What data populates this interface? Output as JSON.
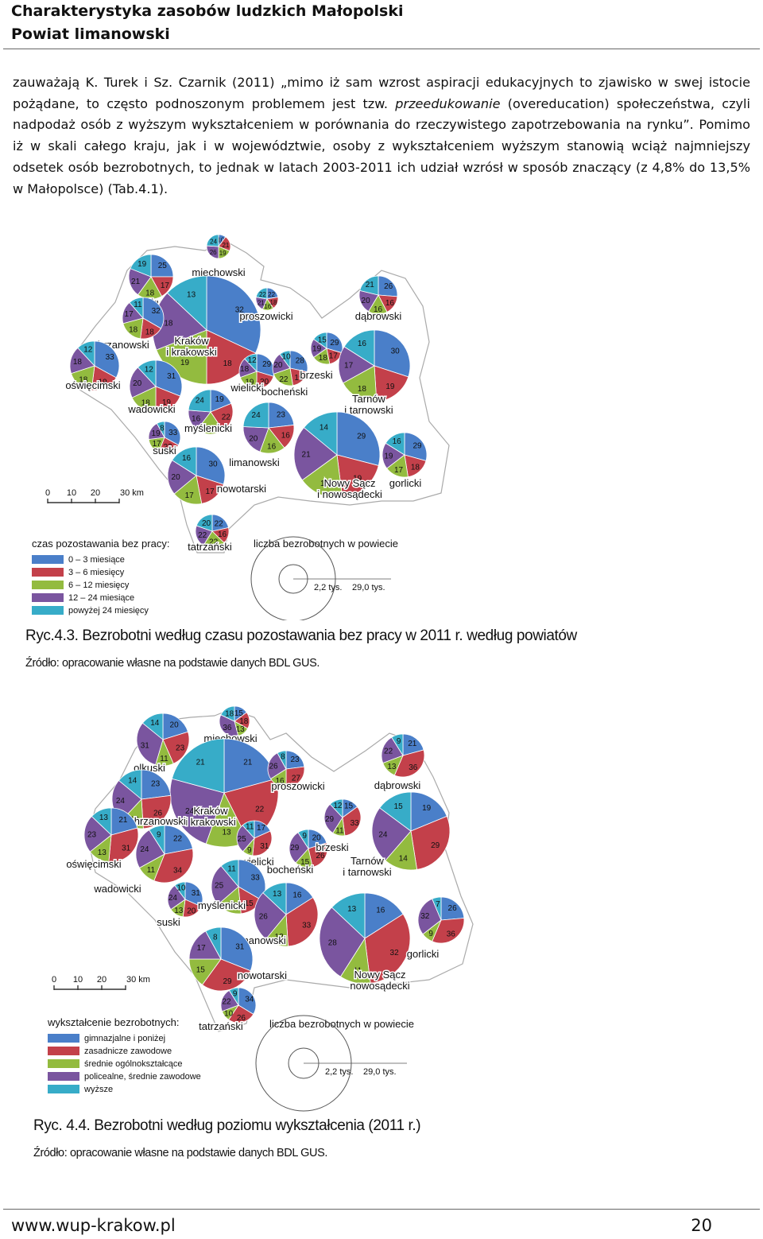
{
  "header": {
    "line1": "Charakterystyka zasobów ludzkich Małopolski",
    "line2": "Powiat limanowski"
  },
  "body": {
    "part1": "zauważają K. Turek i Sz. Czarnik (2011) „mimo iż sam wzrost aspiracji edukacyjnych to zjawisko w swej istocie pożądane, to często podnoszonym problemem jest tzw. ",
    "italic": "przeedukowanie",
    "part2": " (overeducation) społeczeństwa, czyli nadpodaż osób z wyższym wykształceniem w porównania do rzeczywistego zapotrzebowania na rynku”. Pomimo iż w skali całego kraju, jak i w województwie, osoby z wykształceniem wyższym stanowią wciąż najmniejszy odsetek osób bezrobotnych, to jednak w latach 2003-2011 ich udział wzrósł w sposób znaczący (z 4,8% do 13,5% w Małopolsce) (Tab.4.1)."
  },
  "figure1": {
    "caption": "Ryc.4.3. Bezrobotni według czasu pozostawania bez pracy w 2011 r. według powiatów",
    "source": "Źródło: opracowanie własne na podstawie danych BDL GUS.",
    "scale": {
      "ticks": [
        "0",
        "10",
        "20",
        "30 km"
      ]
    },
    "legend_title": "czas pozostawania bez pracy:",
    "legend": [
      {
        "label": "0 – 3 miesiące",
        "color": "#4a7fc9"
      },
      {
        "label": "3 – 6 miesięcy",
        "color": "#c3404a"
      },
      {
        "label": "6 – 12 miesięcy",
        "color": "#93bb3f"
      },
      {
        "label": "12 – 24 miesiące",
        "color": "#7a559f"
      },
      {
        "label": "powyżej 24 miesięcy",
        "color": "#37acc8"
      }
    ],
    "size_title": "liczba bezrobotnych w powiecie",
    "size_small": "2,2 tys.",
    "size_large": "29,0 tys.",
    "districts": [
      {
        "name": "miechowski",
        "values": [
          10,
          21,
          19,
          26,
          24
        ]
      },
      {
        "name": "olkuski",
        "values": [
          25,
          17,
          18,
          21,
          19
        ]
      },
      {
        "name": "Kraków i krakowski",
        "values": [
          32,
          18,
          19,
          18,
          13
        ]
      },
      {
        "name": "proszowicki",
        "values": [
          22,
          18,
          16,
          21,
          22
        ]
      },
      {
        "name": "dąbrowski",
        "values": [
          26,
          16,
          16,
          20,
          21
        ]
      },
      {
        "name": "chrzanowski",
        "values": [
          32,
          18,
          18,
          17,
          11
        ]
      },
      {
        "name": "oświęcimski",
        "values": [
          33,
          19,
          18,
          18,
          12
        ]
      },
      {
        "name": "wadowicki",
        "values": [
          31,
          19,
          18,
          20,
          12
        ]
      },
      {
        "name": "wielicki",
        "values": [
          29,
          20,
          19,
          18,
          12
        ]
      },
      {
        "name": "bocheński",
        "values": [
          28,
          19,
          22,
          20,
          10
        ]
      },
      {
        "name": "brzeski",
        "values": [
          29,
          17,
          18,
          19,
          15
        ]
      },
      {
        "name": "Tarnów i tarnowski",
        "values": [
          30,
          19,
          18,
          17,
          16
        ]
      },
      {
        "name": "suski",
        "values": [
          33,
          23,
          17,
          19,
          8
        ]
      },
      {
        "name": "myślenicki",
        "values": [
          19,
          22,
          20,
          16,
          24
        ]
      },
      {
        "name": "limanowski",
        "values": [
          23,
          16,
          16,
          20,
          24
        ]
      },
      {
        "name": "Nowy Sącz i nowosądecki",
        "values": [
          29,
          19,
          17,
          21,
          14
        ]
      },
      {
        "name": "gorlicki",
        "values": [
          29,
          18,
          17,
          19,
          16
        ]
      },
      {
        "name": "nowotarski",
        "values": [
          30,
          17,
          17,
          20,
          16
        ]
      },
      {
        "name": "tatrzański",
        "values": [
          22,
          16,
          22,
          22,
          20
        ]
      }
    ]
  },
  "figure2": {
    "caption": "Ryc. 4.4. Bezrobotni według poziomu wykształcenia (2011 r.)",
    "source": "Źródło: opracowanie własne na podstawie danych BDL GUS.",
    "scale": {
      "ticks": [
        "0",
        "10",
        "20",
        "30 km"
      ]
    },
    "legend_title": "wykształcenie bezrobotnych:",
    "legend": [
      {
        "label": "gimnazjalne i poniżej",
        "color": "#4a7fc9"
      },
      {
        "label": "zasadnicze zawodowe",
        "color": "#c3404a"
      },
      {
        "label": "średnie ogólnokształcące",
        "color": "#93bb3f"
      },
      {
        "label": "policealne, średnie zawodowe",
        "color": "#7a559f"
      },
      {
        "label": "wyższe",
        "color": "#37acc8"
      }
    ],
    "size_title": "liczba bezrobotnych w powiecie",
    "size_small": "2,2 tys.",
    "size_large": "29,0 tys.",
    "districts": [
      {
        "name": "miechowski",
        "values": [
          15,
          18,
          13,
          36,
          18
        ]
      },
      {
        "name": "olkuski",
        "values": [
          20,
          23,
          11,
          31,
          14
        ]
      },
      {
        "name": "Kraków i krakowski",
        "values": [
          21,
          22,
          13,
          24,
          21
        ]
      },
      {
        "name": "proszowicki",
        "values": [
          23,
          27,
          16,
          26,
          8
        ]
      },
      {
        "name": "dąbrowski",
        "values": [
          21,
          36,
          13,
          22,
          9
        ]
      },
      {
        "name": "chrzanowski",
        "values": [
          23,
          26,
          13,
          24,
          14
        ]
      },
      {
        "name": "oświęcimski",
        "values": [
          21,
          31,
          13,
          23,
          13
        ]
      },
      {
        "name": "wadowicki",
        "values": [
          22,
          34,
          11,
          24,
          9
        ]
      },
      {
        "name": "wielicki",
        "values": [
          17,
          31,
          9,
          25,
          11
        ]
      },
      {
        "name": "bocheński",
        "values": [
          20,
          26,
          15,
          29,
          9
        ]
      },
      {
        "name": "brzeski",
        "values": [
          15,
          33,
          11,
          29,
          12
        ]
      },
      {
        "name": "Tarnów i tarnowski",
        "values": [
          19,
          29,
          14,
          24,
          15
        ]
      },
      {
        "name": "suski",
        "values": [
          31,
          20,
          13,
          24,
          10
        ]
      },
      {
        "name": "myślenicki",
        "values": [
          33,
          15,
          15,
          25,
          11
        ]
      },
      {
        "name": "limanowski",
        "values": [
          16,
          33,
          12,
          26,
          13
        ]
      },
      {
        "name": "Nowy Sącz i nowosądecki",
        "values": [
          16,
          32,
          11,
          28,
          13
        ]
      },
      {
        "name": "gorlicki",
        "values": [
          26,
          36,
          9,
          32,
          7
        ]
      },
      {
        "name": "nowotarski",
        "values": [
          31,
          29,
          15,
          17,
          8
        ]
      },
      {
        "name": "tatrzański",
        "values": [
          34,
          26,
          10,
          22,
          9
        ]
      }
    ]
  },
  "footer": {
    "url": "www.wup-krakow.pl",
    "page": "20"
  }
}
